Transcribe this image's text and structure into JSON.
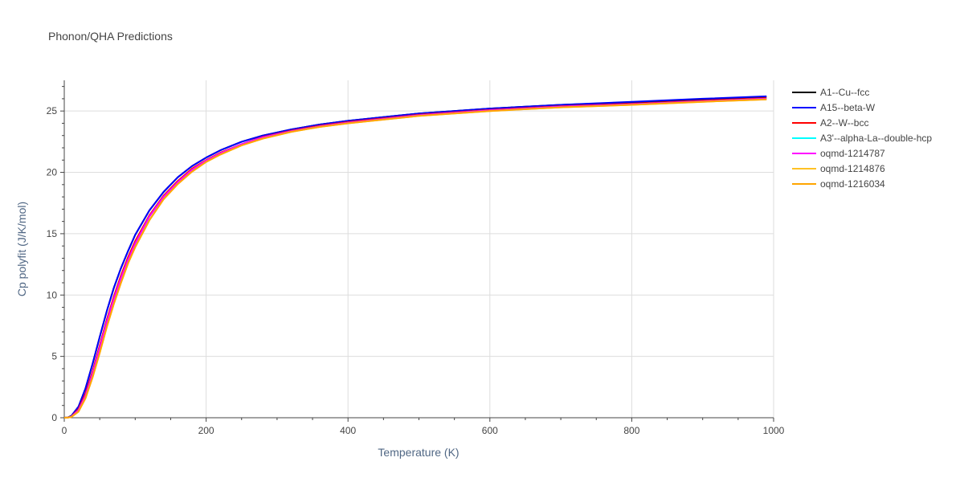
{
  "chart_data": {
    "type": "line",
    "title": "Phonon/QHA Predictions",
    "xlabel": "Temperature (K)",
    "ylabel": "Cp polyfit (J/K/mol)",
    "xlim": [
      0,
      1000
    ],
    "ylim": [
      0,
      27.5
    ],
    "xticks": [
      0,
      200,
      400,
      600,
      800,
      1000
    ],
    "yticks": [
      0,
      5,
      10,
      15,
      20,
      25
    ],
    "grid": true,
    "legend_position": "right",
    "x": [
      5,
      10,
      20,
      30,
      40,
      50,
      60,
      70,
      80,
      90,
      100,
      120,
      140,
      160,
      180,
      200,
      220,
      250,
      280,
      320,
      360,
      400,
      450,
      500,
      600,
      700,
      800,
      900,
      990
    ],
    "series": [
      {
        "name": "A1--Cu--fcc",
        "color": "#000000",
        "values": [
          0.02,
          0.15,
          0.9,
          2.4,
          4.4,
          6.6,
          8.7,
          10.6,
          12.2,
          13.6,
          14.9,
          16.9,
          18.4,
          19.6,
          20.5,
          21.2,
          21.8,
          22.5,
          23.0,
          23.5,
          23.9,
          24.2,
          24.5,
          24.8,
          25.2,
          25.5,
          25.7,
          25.95,
          26.15
        ]
      },
      {
        "name": "A15--beta-W",
        "color": "#0000ff",
        "values": [
          0.02,
          0.15,
          0.9,
          2.4,
          4.4,
          6.6,
          8.7,
          10.6,
          12.2,
          13.6,
          14.9,
          16.9,
          18.4,
          19.6,
          20.5,
          21.2,
          21.8,
          22.5,
          23.0,
          23.5,
          23.9,
          24.2,
          24.5,
          24.8,
          25.2,
          25.5,
          25.75,
          26.0,
          26.2
        ]
      },
      {
        "name": "A2--W--bcc",
        "color": "#ff0000",
        "values": [
          0.01,
          0.1,
          0.7,
          2.0,
          3.8,
          5.9,
          8.0,
          9.9,
          11.6,
          13.1,
          14.4,
          16.5,
          18.1,
          19.3,
          20.3,
          21.0,
          21.6,
          22.3,
          22.9,
          23.4,
          23.8,
          24.1,
          24.4,
          24.7,
          25.1,
          25.4,
          25.6,
          25.85,
          26.05
        ]
      },
      {
        "name": "A3'--alpha-La--double-hcp",
        "color": "#00ffff",
        "values": [
          0.01,
          0.08,
          0.6,
          1.8,
          3.6,
          5.7,
          7.8,
          9.7,
          11.4,
          12.9,
          14.2,
          16.4,
          18.0,
          19.2,
          20.2,
          20.95,
          21.55,
          22.3,
          22.85,
          23.35,
          23.75,
          24.05,
          24.35,
          24.65,
          25.05,
          25.35,
          25.55,
          25.8,
          26.0
        ]
      },
      {
        "name": "oqmd-1214787",
        "color": "#ff00ff",
        "values": [
          0.01,
          0.08,
          0.6,
          1.8,
          3.6,
          5.7,
          7.8,
          9.7,
          11.4,
          12.9,
          14.2,
          16.4,
          18.0,
          19.2,
          20.2,
          20.95,
          21.55,
          22.3,
          22.85,
          23.35,
          23.75,
          24.05,
          24.35,
          24.65,
          25.05,
          25.35,
          25.55,
          25.8,
          26.0
        ]
      },
      {
        "name": "oqmd-1214876",
        "color": "#ffc125",
        "values": [
          0.01,
          0.06,
          0.5,
          1.6,
          3.3,
          5.3,
          7.4,
          9.3,
          11.0,
          12.6,
          13.9,
          16.1,
          17.8,
          19.05,
          20.05,
          20.85,
          21.45,
          22.2,
          22.75,
          23.3,
          23.7,
          24.0,
          24.3,
          24.6,
          25.0,
          25.3,
          25.5,
          25.75,
          25.95
        ]
      },
      {
        "name": "oqmd-1216034",
        "color": "#ffa500",
        "values": [
          0.01,
          0.06,
          0.5,
          1.6,
          3.3,
          5.3,
          7.4,
          9.3,
          11.0,
          12.6,
          13.9,
          16.1,
          17.8,
          19.05,
          20.05,
          20.85,
          21.45,
          22.2,
          22.75,
          23.3,
          23.7,
          24.0,
          24.3,
          24.6,
          25.0,
          25.3,
          25.5,
          25.75,
          25.95
        ]
      }
    ]
  }
}
